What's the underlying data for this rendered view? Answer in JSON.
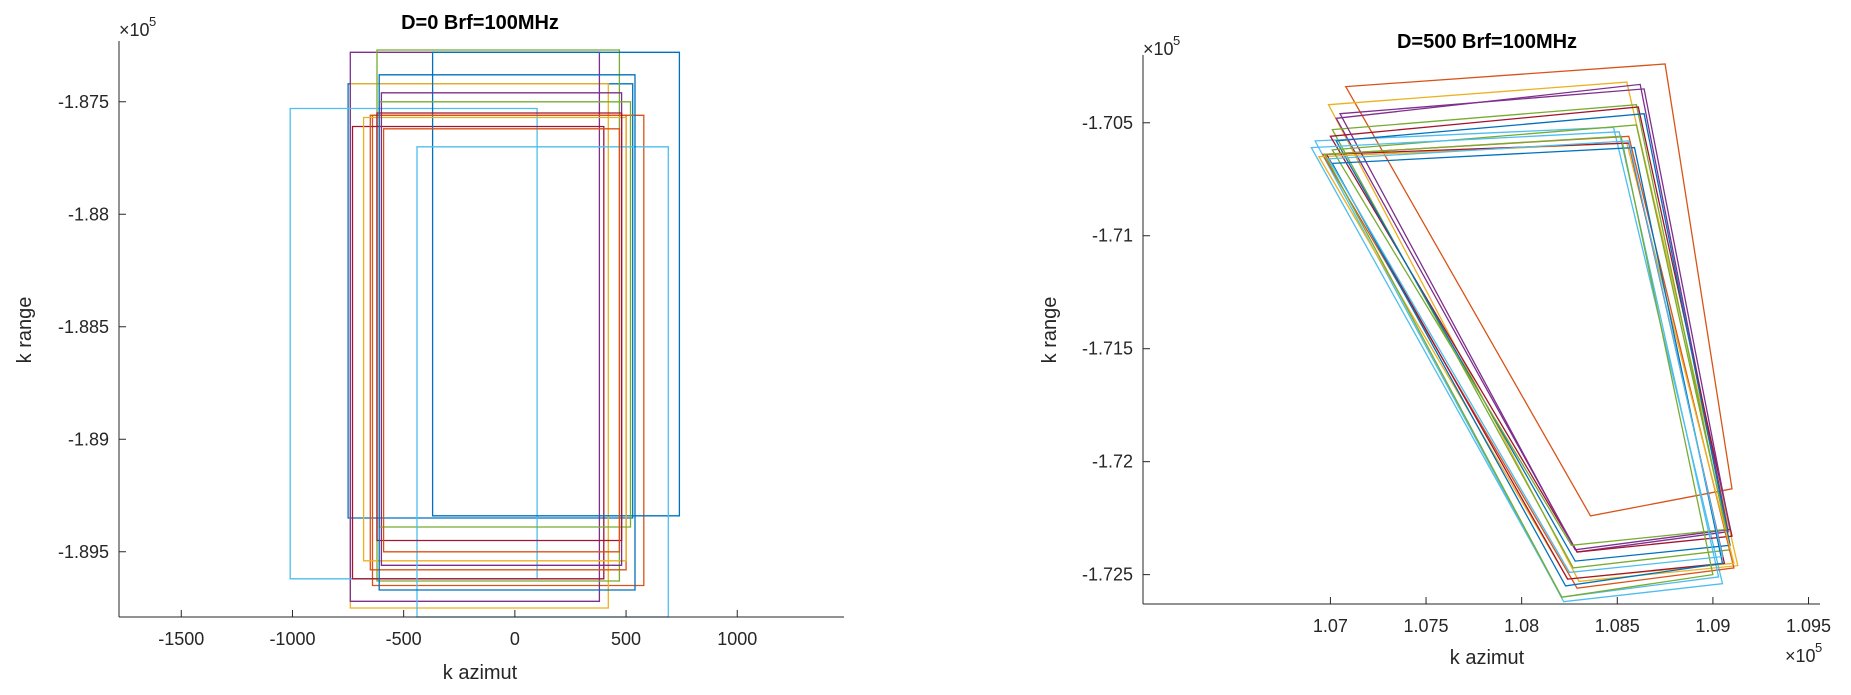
{
  "chart_data": [
    {
      "type": "line",
      "title": "D=0  Brf=100MHz",
      "xlabel": "k azimut",
      "ylabel": "k range",
      "xlim": [
        -1780,
        1480
      ],
      "ylim": [
        -189790,
        -187230
      ],
      "x_ticks": [
        -1500,
        -1000,
        -500,
        0,
        500,
        1000
      ],
      "x_tick_labels": [
        "-1500",
        "-1000",
        "-500",
        "0",
        "500",
        "1000"
      ],
      "y_ticks": [
        -187500,
        -188000,
        -188500,
        -189000,
        -189500
      ],
      "y_tick_labels": [
        "-1.875",
        "-1.88",
        "-1.885",
        "-1.89",
        "-1.895"
      ],
      "y_exponent": "5",
      "x_exponent": "",
      "grid": false,
      "series": [
        {
          "color": "#0072BD",
          "rect": [
            -750,
            -189350,
            530,
            -187420
          ]
        },
        {
          "color": "#D95319",
          "rect": [
            -640,
            -189650,
            580,
            -187560
          ]
        },
        {
          "color": "#EDB120",
          "rect": [
            -740,
            -189750,
            420,
            -187420
          ]
        },
        {
          "color": "#7E2F8E",
          "rect": [
            -740,
            -189720,
            380,
            -187280
          ]
        },
        {
          "color": "#77AC30",
          "rect": [
            -620,
            -189630,
            470,
            -187270
          ]
        },
        {
          "color": "#4DBEEE",
          "rect": [
            -1010,
            -189620,
            100,
            -187530
          ]
        },
        {
          "color": "#A2142F",
          "rect": [
            -730,
            -189620,
            400,
            -187610
          ]
        },
        {
          "color": "#0072BD",
          "rect": [
            -370,
            -189340,
            740,
            -187280
          ]
        },
        {
          "color": "#D95319",
          "rect": [
            -650,
            -189580,
            500,
            -187560
          ]
        },
        {
          "color": "#EDB120",
          "rect": [
            -680,
            -189540,
            500,
            -187570
          ]
        },
        {
          "color": "#7E2F8E",
          "rect": [
            -600,
            -189560,
            480,
            -187460
          ]
        },
        {
          "color": "#77AC30",
          "rect": [
            -610,
            -189390,
            520,
            -187500
          ]
        },
        {
          "color": "#4DBEEE",
          "rect": [
            -440,
            -189790,
            690,
            -187700
          ]
        },
        {
          "color": "#A2142F",
          "rect": [
            -620,
            -189450,
            480,
            -187550
          ]
        },
        {
          "color": "#0072BD",
          "rect": [
            -610,
            -189670,
            540,
            -187380
          ]
        },
        {
          "color": "#D95319",
          "rect": [
            -590,
            -189500,
            470,
            -187620
          ]
        }
      ]
    },
    {
      "type": "line",
      "title": "D=500  Brf=100MHz",
      "xlabel": "k azimut",
      "ylabel": "k range",
      "xlim": [
        106020,
        109560
      ],
      "ylim": [
        -172630,
        -170200
      ],
      "x_ticks": [
        107000,
        107500,
        108000,
        108500,
        109000,
        109500
      ],
      "x_tick_labels": [
        "1.07",
        "1.075",
        "1.08",
        "1.085",
        "1.09",
        "1.095"
      ],
      "y_ticks": [
        -170500,
        -171000,
        -171500,
        -172000,
        -172500
      ],
      "y_tick_labels": [
        "-1.705",
        "-1.71",
        "-1.715",
        "-1.72",
        "-1.725"
      ],
      "y_exponent": "5",
      "x_exponent": "5",
      "grid": false,
      "series": [
        {
          "color": "#D95319",
          "quad": [
            [
              107080,
              -170340
            ],
            [
              108750,
              -170240
            ],
            [
              109100,
              -172120
            ],
            [
              108360,
              -172240
            ]
          ]
        },
        {
          "color": "#EDB120",
          "quad": [
            [
              106990,
              -170420
            ],
            [
              108550,
              -170320
            ],
            [
              109130,
              -172460
            ],
            [
              108300,
              -172530
            ]
          ]
        },
        {
          "color": "#7E2F8E",
          "quad": [
            [
              107030,
              -170480
            ],
            [
              108620,
              -170330
            ],
            [
              109080,
              -172310
            ],
            [
              108290,
              -172400
            ]
          ]
        },
        {
          "color": "#77AC30",
          "quad": [
            [
              107010,
              -170530
            ],
            [
              108600,
              -170420
            ],
            [
              109090,
              -172390
            ],
            [
              108270,
              -172470
            ]
          ]
        },
        {
          "color": "#4DBEEE",
          "quad": [
            [
              106920,
              -170580
            ],
            [
              108480,
              -170520
            ],
            [
              109050,
              -172540
            ],
            [
              108220,
              -172620
            ]
          ]
        },
        {
          "color": "#A2142F",
          "quad": [
            [
              107000,
              -170560
            ],
            [
              108610,
              -170430
            ],
            [
              109100,
              -172330
            ],
            [
              108290,
              -172400
            ]
          ]
        },
        {
          "color": "#0072BD",
          "quad": [
            [
              107030,
              -170580
            ],
            [
              108640,
              -170460
            ],
            [
              109090,
              -172370
            ],
            [
              108280,
              -172440
            ]
          ]
        },
        {
          "color": "#D95319",
          "quad": [
            [
              106960,
              -170640
            ],
            [
              108560,
              -170560
            ],
            [
              109110,
              -172470
            ],
            [
              108290,
              -172560
            ]
          ]
        },
        {
          "color": "#EDB120",
          "quad": [
            [
              106940,
              -170650
            ],
            [
              108550,
              -170590
            ],
            [
              109110,
              -172450
            ],
            [
              108240,
              -172520
            ]
          ]
        },
        {
          "color": "#7E2F8E",
          "quad": [
            [
              107050,
              -170460
            ],
            [
              108640,
              -170350
            ],
            [
              109090,
              -172300
            ],
            [
              108280,
              -172390
            ]
          ]
        },
        {
          "color": "#77AC30",
          "quad": [
            [
              107010,
              -170620
            ],
            [
              108600,
              -170510
            ],
            [
              109070,
              -172300
            ],
            [
              108260,
              -172370
            ]
          ]
        },
        {
          "color": "#4DBEEE",
          "quad": [
            [
              106900,
              -170610
            ],
            [
              108510,
              -170540
            ],
            [
              109030,
              -172510
            ],
            [
              108210,
              -172600
            ]
          ]
        },
        {
          "color": "#A2142F",
          "quad": [
            [
              106980,
              -170640
            ],
            [
              108560,
              -170590
            ],
            [
              109060,
              -172450
            ],
            [
              108240,
              -172520
            ]
          ]
        },
        {
          "color": "#0072BD",
          "quad": [
            [
              107010,
              -170680
            ],
            [
              108590,
              -170610
            ],
            [
              109050,
              -172450
            ],
            [
              108230,
              -172550
            ]
          ]
        },
        {
          "color": "#77AC30",
          "quad": [
            [
              106970,
              -170640
            ],
            [
              108520,
              -170560
            ],
            [
              109000,
              -172500
            ],
            [
              108210,
              -172600
            ]
          ]
        },
        {
          "color": "#4DBEEE",
          "quad": [
            [
              106990,
              -170660
            ],
            [
              108560,
              -170580
            ],
            [
              109050,
              -172420
            ],
            [
              108250,
              -172490
            ]
          ]
        }
      ]
    }
  ]
}
